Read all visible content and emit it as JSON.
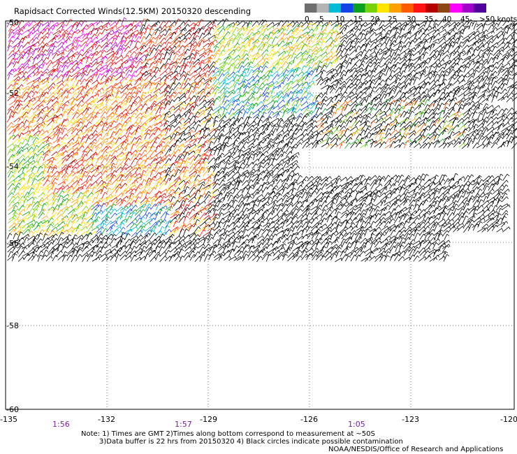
{
  "title": "Rapidsact Corrected Winds(12.5KM) 20150320 descending",
  "legend": {
    "colors": [
      "#6e6e6e",
      "#b4b4b4",
      "#00bcd4",
      "#1444e6",
      "#0aa01e",
      "#78d20a",
      "#ffe400",
      "#ffa000",
      "#ff5a00",
      "#ff1414",
      "#b40000",
      "#8c4614",
      "#ff00ff",
      "#a000c8",
      "#50009b"
    ],
    "labels": [
      "0",
      "5",
      "10",
      "15",
      "20",
      "25",
      "30",
      "35",
      "40",
      "45",
      ">50 knots"
    ],
    "unit": "knots"
  },
  "lat_labels": [
    "-50",
    "-52",
    "-54",
    "-56",
    "-58",
    "-60"
  ],
  "lon_labels": [
    "-135",
    "-132",
    "-129",
    "-126",
    "-123",
    "-120"
  ],
  "time_labels": [
    "1:56",
    "1:57",
    "1:05"
  ],
  "notes": [
    "Note: 1) Times are GMT 2)Times along bottom correspond to measurement at ~50S",
    "3)Data buffer is 22 hrs from 20150320 4) Black circles indicate possible contamination"
  ],
  "credit": "NOAA/NESDIS/Office of Research and Applications"
}
